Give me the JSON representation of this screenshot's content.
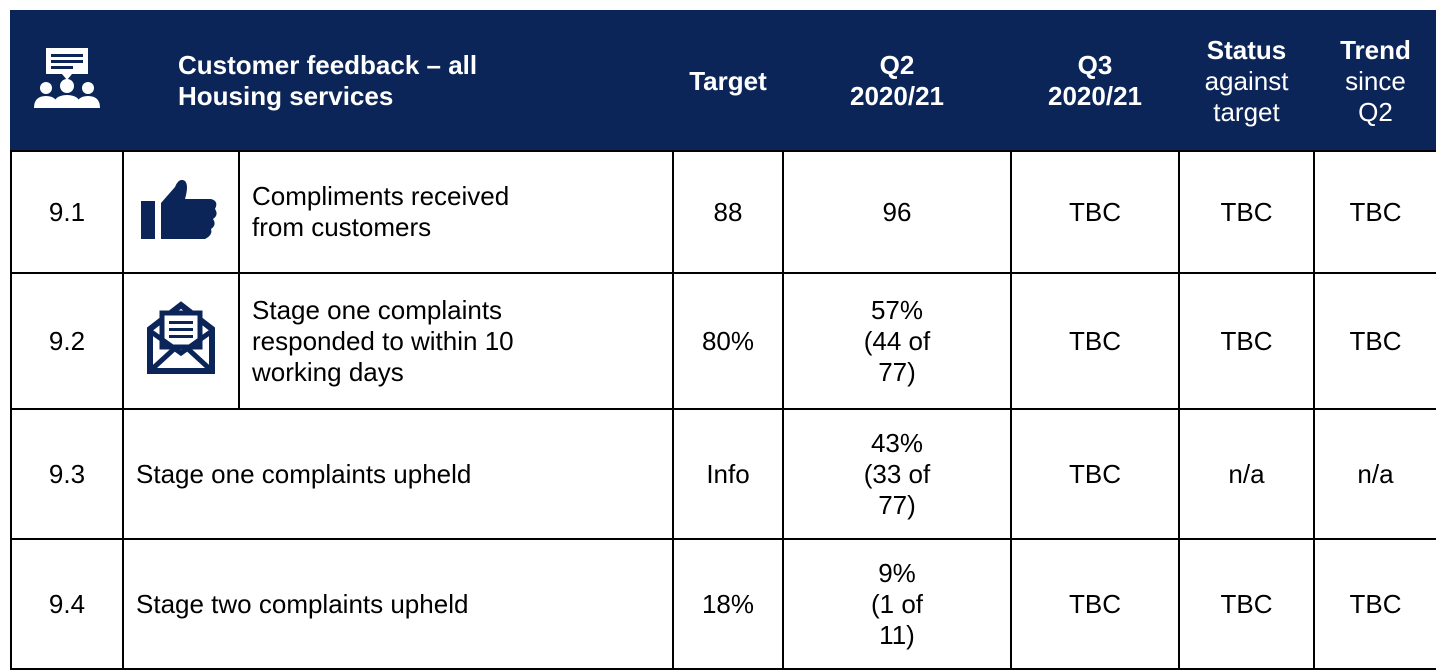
{
  "header": {
    "title": [
      "Customer feedback – all",
      "Housing services"
    ],
    "target": "Target",
    "q2": [
      "Q2",
      "2020/21"
    ],
    "q3": [
      "Q3",
      "2020/21"
    ],
    "status": {
      "bold": "Status",
      "rest": [
        "against",
        "target"
      ]
    },
    "trend": {
      "bold": "Trend",
      "rest": [
        "since",
        "Q2"
      ]
    }
  },
  "rows": [
    {
      "id": "9.1",
      "description": [
        "Compliments received",
        "from customers"
      ],
      "target": "88",
      "q2": [
        "96"
      ],
      "q3": "TBC",
      "status": "TBC",
      "trend": "TBC"
    },
    {
      "id": "9.2",
      "description": [
        "Stage one complaints",
        "responded to within 10",
        "working days"
      ],
      "target": "80%",
      "q2": [
        "57%",
        "(44 of",
        "77)"
      ],
      "q3": "TBC",
      "status": "TBC",
      "trend": "TBC"
    },
    {
      "id": "9.3",
      "description": [
        "Stage one complaints upheld"
      ],
      "target": "Info",
      "q2": [
        "43%",
        "(33 of",
        "77)"
      ],
      "q3": "TBC",
      "status": "n/a",
      "trend": "n/a"
    },
    {
      "id": "9.4",
      "description": [
        "Stage two complaints upheld"
      ],
      "target": "18%",
      "q2": [
        "9%",
        "(1 of",
        "11)"
      ],
      "q3": "TBC",
      "status": "TBC",
      "trend": "TBC"
    }
  ]
}
